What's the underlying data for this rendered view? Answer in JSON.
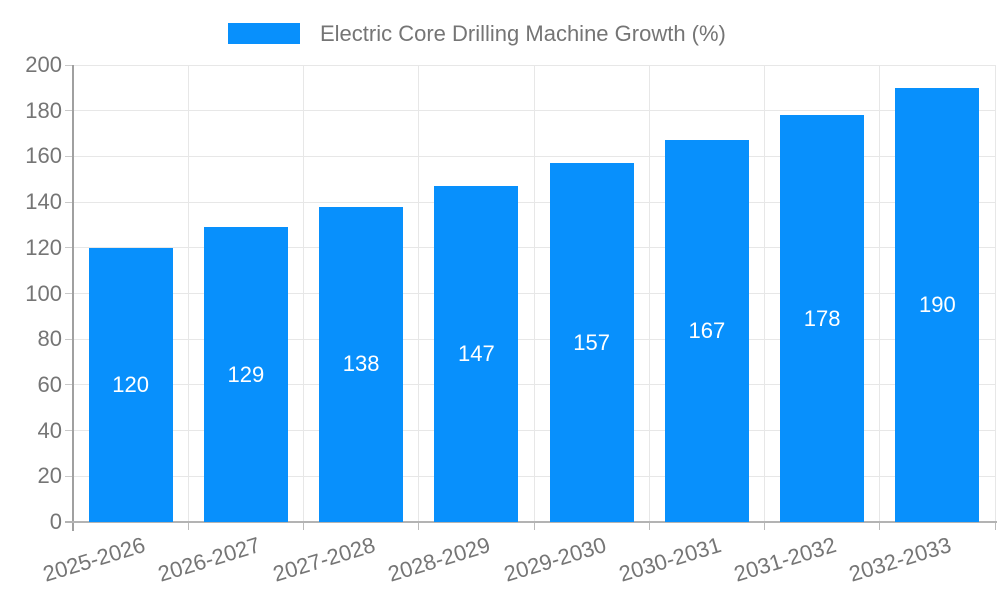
{
  "chart_data": {
    "type": "bar",
    "title": "",
    "legend": {
      "position": "top",
      "label": "Electric Core Drilling Machine Growth (%)"
    },
    "categories": [
      "2025-2026",
      "2026-2027",
      "2027-2028",
      "2028-2029",
      "2029-2030",
      "2030-2031",
      "2031-2032",
      "2032-2033"
    ],
    "series": [
      {
        "name": "Electric Core Drilling Machine Growth (%)",
        "values": [
          120,
          129,
          138,
          147,
          157,
          167,
          178,
          190
        ]
      }
    ],
    "value_labels": [
      "120",
      "129",
      "138",
      "147",
      "157",
      "167",
      "178",
      "190"
    ],
    "xlabel": "",
    "ylabel": "",
    "ylim": [
      0,
      200
    ],
    "ytick_step": 20,
    "ytick_labels": [
      "0",
      "20",
      "40",
      "60",
      "80",
      "100",
      "120",
      "140",
      "160",
      "180",
      "200"
    ],
    "grid": true,
    "colors": {
      "bar": "#0890fc",
      "bar_value_label": "#ffffff",
      "grid_line": "#e7e7e7",
      "axis_line": "#a0a0a0",
      "tick_text": "#757575",
      "legend_text": "#757575",
      "background": "#ffffff"
    }
  }
}
